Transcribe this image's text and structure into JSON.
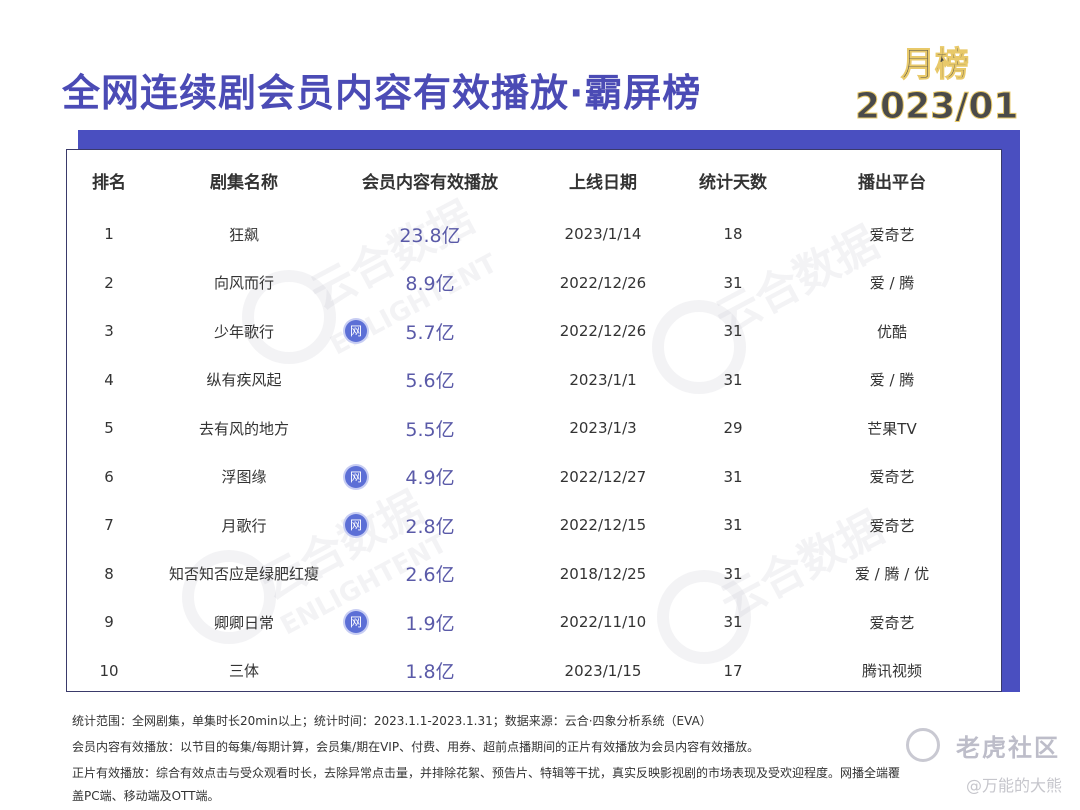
{
  "header": {
    "title": "全网连续剧会员内容有效播放·霸屏榜",
    "badge_line1": "月榜",
    "badge_line2": "2023/01"
  },
  "table": {
    "columns": [
      "排名",
      "剧集名称",
      "会员内容有效播放",
      "上线日期",
      "统计天数",
      "播出平台"
    ],
    "rows": [
      {
        "rank": "1",
        "name": "狂飙",
        "net": false,
        "plays": "23.8亿",
        "date": "2023/1/14",
        "days": "18",
        "platform": "爱奇艺"
      },
      {
        "rank": "2",
        "name": "向风而行",
        "net": false,
        "plays": "8.9亿",
        "date": "2022/12/26",
        "days": "31",
        "platform": "爱 / 腾"
      },
      {
        "rank": "3",
        "name": "少年歌行",
        "net": true,
        "plays": "5.7亿",
        "date": "2022/12/26",
        "days": "31",
        "platform": "优酷"
      },
      {
        "rank": "4",
        "name": "纵有疾风起",
        "net": false,
        "plays": "5.6亿",
        "date": "2023/1/1",
        "days": "31",
        "platform": "爱 / 腾"
      },
      {
        "rank": "5",
        "name": "去有风的地方",
        "net": false,
        "plays": "5.5亿",
        "date": "2023/1/3",
        "days": "29",
        "platform": "芒果TV"
      },
      {
        "rank": "6",
        "name": "浮图缘",
        "net": true,
        "plays": "4.9亿",
        "date": "2022/12/27",
        "days": "31",
        "platform": "爱奇艺"
      },
      {
        "rank": "7",
        "name": "月歌行",
        "net": true,
        "plays": "2.8亿",
        "date": "2022/12/15",
        "days": "31",
        "platform": "爱奇艺"
      },
      {
        "rank": "8",
        "name": "知否知否应是绿肥红瘦",
        "net": false,
        "plays": "2.6亿",
        "date": "2018/12/25",
        "days": "31",
        "platform": "爱 / 腾 / 优"
      },
      {
        "rank": "9",
        "name": "卿卿日常",
        "net": true,
        "plays": "1.9亿",
        "date": "2022/11/10",
        "days": "31",
        "platform": "爱奇艺"
      },
      {
        "rank": "10",
        "name": "三体",
        "net": false,
        "plays": "1.8亿",
        "date": "2023/1/15",
        "days": "17",
        "platform": "腾讯视频"
      }
    ],
    "net_icon_label": "网"
  },
  "watermark": {
    "text_cn": "云合数据",
    "text_en": "ENLIGHTENT"
  },
  "footer": {
    "line1": "统计范围：全网剧集，单集时长20min以上；统计时间：2023.1.1-2023.1.31；数据来源：云合·四象分析系统（EVA）",
    "line2": "会员内容有效播放：以节目的每集/每期计算，会员集/期在VIP、付费、用券、超前点播期间的正片有效播放为会员内容有效播放。",
    "line3": "正片有效播放：综合有效点击与受众观看时长，去除异常点击量，并排除花絮、预告片、特辑等干扰，真实反映影视剧的市场表现及受欢迎程度。网播全端覆",
    "line4": "盖PC端、移动端及OTT端。"
  },
  "corner_watermark": {
    "brand": "老虎社区",
    "handle": "@万能的大熊"
  }
}
